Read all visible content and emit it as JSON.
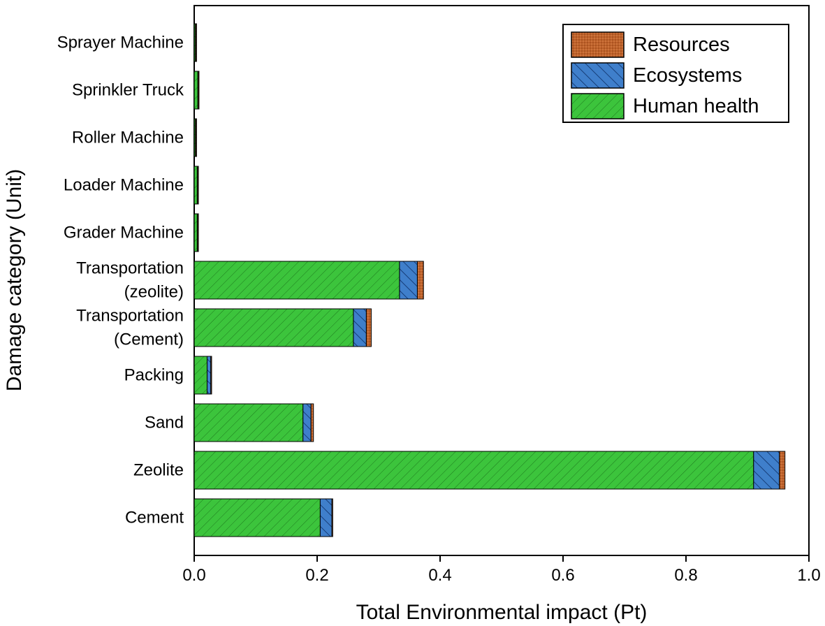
{
  "chart_data": {
    "type": "bar",
    "orientation": "horizontal",
    "stacked": true,
    "xlabel": "Total Environmental impact (Pt)",
    "ylabel": "Damage category (Unit)",
    "xlim": [
      0,
      1.0
    ],
    "xticks": [
      "0.0",
      "0.2",
      "0.4",
      "0.6",
      "0.8",
      "1.0"
    ],
    "grid": false,
    "legend_position": "top-right",
    "categories": [
      [
        "Cement"
      ],
      [
        "Zeolite"
      ],
      [
        "Sand"
      ],
      [
        "Packing"
      ],
      [
        "Transportation",
        "(Cement)"
      ],
      [
        "Transportation",
        "(zeolite)"
      ],
      [
        "Grader Machine"
      ],
      [
        "Loader Machine"
      ],
      [
        "Roller Machine"
      ],
      [
        "Sprinkler Truck"
      ],
      [
        "Sprayer Machine"
      ]
    ],
    "series": [
      {
        "name": "Human health",
        "color": "#3cc43c",
        "pattern": "diagonal-dense",
        "values": [
          0.205,
          0.91,
          0.177,
          0.021,
          0.259,
          0.334,
          0.005,
          0.005,
          0.002,
          0.006,
          0.002
        ]
      },
      {
        "name": "Ecosystems",
        "color": "#3f7fcb",
        "pattern": "diagonal-sparse",
        "values": [
          0.019,
          0.042,
          0.013,
          0.006,
          0.021,
          0.029,
          0.0005,
          0.0005,
          0.0005,
          0.0005,
          0.0005
        ]
      },
      {
        "name": "Resources",
        "color": "#c0622a",
        "pattern": "dots",
        "values": [
          0.001,
          0.009,
          0.004,
          0.001,
          0.008,
          0.01,
          0.0002,
          0.0002,
          0.0002,
          0.0002,
          0.0002
        ]
      }
    ],
    "legend_order": [
      "Resources",
      "Ecosystems",
      "Human health"
    ]
  }
}
